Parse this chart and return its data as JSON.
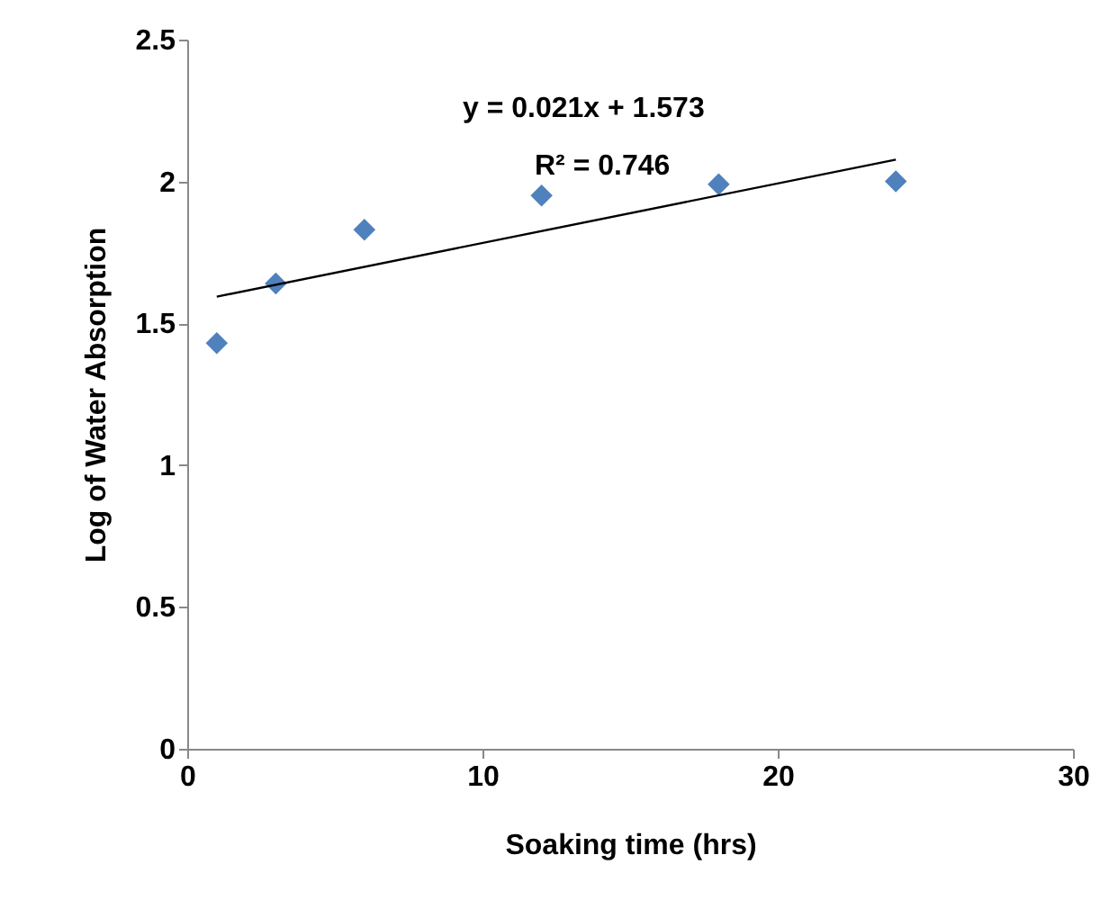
{
  "chart_data": {
    "type": "scatter",
    "xlabel": "Soaking time (hrs)",
    "ylabel": "Log of Water Absorption",
    "x": [
      1,
      3,
      6,
      12,
      18,
      24
    ],
    "series": [
      {
        "color": "#4f81bd",
        "marker": "diamond",
        "values": [
          1.43,
          1.64,
          1.83,
          1.95,
          1.99,
          2.0
        ]
      },
      {
        "type": "line",
        "color": "#000000",
        "marker": "none",
        "x": [
          1,
          24
        ],
        "values": [
          1.594,
          2.077
        ]
      }
    ],
    "annotations": [
      "y = 0.021x  + 1.573",
      "R² = 0.746"
    ],
    "xlim": [
      0,
      30
    ],
    "xticks": [
      0,
      10,
      20,
      30
    ],
    "ylim": [
      0,
      2.5
    ],
    "yticks": [
      0,
      0.5,
      1,
      1.5,
      2,
      2.5
    ],
    "grid": false
  }
}
